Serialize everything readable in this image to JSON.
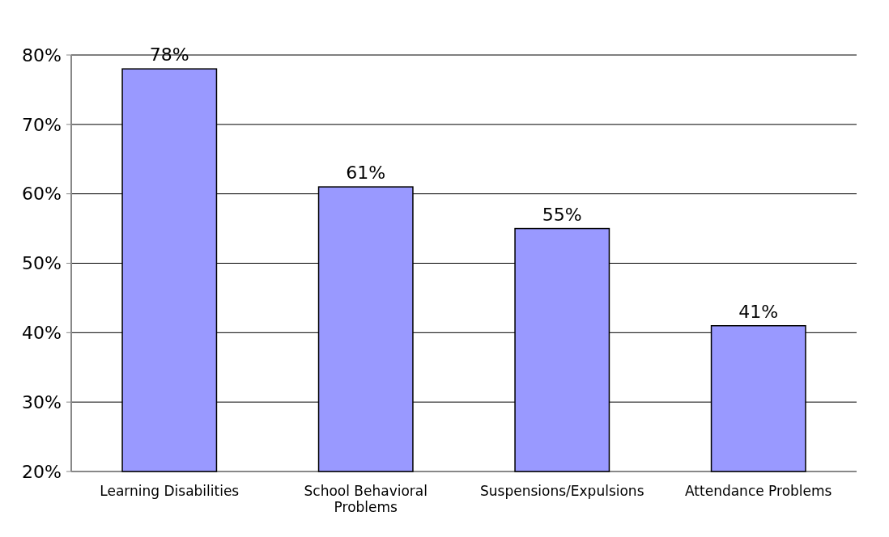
{
  "chart_data": {
    "type": "bar",
    "categories": [
      "Learning Disabilities",
      "School Behavioral Problems",
      "Suspensions/Expulsions",
      "Attendance Problems"
    ],
    "values": [
      78,
      61,
      55,
      41
    ],
    "color": "#9999ff",
    "value_labels": [
      "78%",
      "61%",
      "55%",
      "41%"
    ],
    "ylim": [
      20,
      80
    ],
    "yticks": [
      {
        "value": 20,
        "label": "20%"
      },
      {
        "value": 30,
        "label": "30%"
      },
      {
        "value": 40,
        "label": "40%"
      },
      {
        "value": 50,
        "label": "50%"
      },
      {
        "value": 60,
        "label": "60%"
      },
      {
        "value": 70,
        "label": "70%"
      },
      {
        "value": 80,
        "label": "80%"
      }
    ],
    "grid": "y"
  }
}
